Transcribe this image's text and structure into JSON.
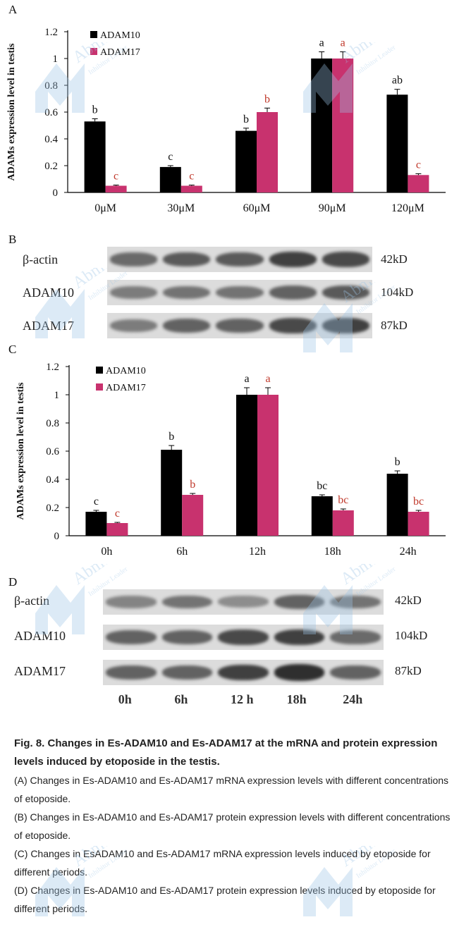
{
  "panels": {
    "a": "A",
    "b": "B",
    "c": "C",
    "d": "D"
  },
  "chart_data": [
    {
      "type": "bar",
      "panel": "A",
      "categories": [
        "0μM",
        "30μM",
        "60μM",
        "90μM",
        "120μM"
      ],
      "series": [
        {
          "name": "ADAM10",
          "color": "#000000",
          "values": [
            0.53,
            0.19,
            0.46,
            1.0,
            0.73
          ],
          "errors": [
            0.02,
            0.01,
            0.02,
            0.05,
            0.04
          ],
          "labels": [
            "b",
            "c",
            "b",
            "a",
            "ab"
          ]
        },
        {
          "name": "ADAM17",
          "color": "#c8326e",
          "values": [
            0.05,
            0.05,
            0.6,
            1.0,
            0.13
          ],
          "errors": [
            0.005,
            0.005,
            0.03,
            0.05,
            0.01
          ],
          "labels": [
            "c",
            "c",
            "b",
            "a",
            "c"
          ]
        }
      ],
      "ylabel": "ADAMs expression level in testis",
      "ylim": [
        0,
        1.2
      ],
      "yticks": [
        "0",
        "0.2",
        "0.4",
        "0.6",
        "0.8",
        "1",
        "1.2"
      ],
      "legend": "top-left"
    },
    {
      "type": "bar",
      "panel": "C",
      "categories": [
        "0h",
        "6h",
        "12h",
        "18h",
        "24h"
      ],
      "series": [
        {
          "name": "ADAM10",
          "color": "#000000",
          "values": [
            0.17,
            0.61,
            1.0,
            0.28,
            0.44
          ],
          "errors": [
            0.01,
            0.03,
            0.05,
            0.01,
            0.02
          ],
          "labels": [
            "c",
            "b",
            "a",
            "bc",
            "b"
          ]
        },
        {
          "name": "ADAM17",
          "color": "#c8326e",
          "values": [
            0.09,
            0.29,
            1.0,
            0.18,
            0.17
          ],
          "errors": [
            0.005,
            0.01,
            0.05,
            0.01,
            0.01
          ],
          "labels": [
            "c",
            "b",
            "a",
            "bc",
            "bc"
          ]
        }
      ],
      "ylabel": "ADAMs expression level in testis",
      "ylim": [
        0,
        1.2
      ],
      "yticks": [
        "0",
        "0.2",
        "0.4",
        "0.6",
        "0.8",
        "1",
        "1.2"
      ],
      "legend": "top-left"
    }
  ],
  "blot_b": {
    "rows": [
      {
        "label": "β-actin",
        "kd": "42kD",
        "intensity": [
          0.55,
          0.65,
          0.65,
          0.8,
          0.75
        ]
      },
      {
        "label": "ADAM10",
        "kd": "104kD",
        "intensity": [
          0.45,
          0.5,
          0.5,
          0.6,
          0.65
        ]
      },
      {
        "label": "ADAM17",
        "kd": "87kD",
        "intensity": [
          0.45,
          0.6,
          0.6,
          0.75,
          0.8
        ]
      }
    ]
  },
  "blot_d": {
    "rows": [
      {
        "label": "β-actin",
        "kd": "42kD",
        "intensity": [
          0.4,
          0.5,
          0.35,
          0.6,
          0.5
        ]
      },
      {
        "label": "ADAM10",
        "kd": "104kD",
        "intensity": [
          0.6,
          0.6,
          0.75,
          0.8,
          0.55
        ]
      },
      {
        "label": "ADAM17",
        "kd": "87kD",
        "intensity": [
          0.6,
          0.6,
          0.8,
          0.9,
          0.6
        ]
      }
    ],
    "lanes": [
      "0h",
      "6h",
      "12 h",
      "18h",
      "24h"
    ]
  },
  "caption": {
    "title": "Fig. 8. Changes in Es-ADAM10 and Es-ADAM17 at the mRNA and protein expression levels induced by etoposide in the testis.",
    "a": "(A) Changes in Es-ADAM10 and Es-ADAM17 mRNA expression levels with different concentrations of etoposide.",
    "b": "(B) Changes in Es-ADAM10 and Es-ADAM17 protein expression levels with different concentrations of etoposide.",
    "c": "(C) Changes in EsADAM10 and Es-ADAM17 mRNA expression levels induced by etoposide for different periods.",
    "d": "(D) Changes in Es-ADAM10 and Es-ADAM17 protein expression levels induced by etoposide for different periods."
  },
  "watermark": {
    "brand": "Abmole",
    "tagline": "Inhibitor Leader",
    "color": "#9cc4e6"
  }
}
